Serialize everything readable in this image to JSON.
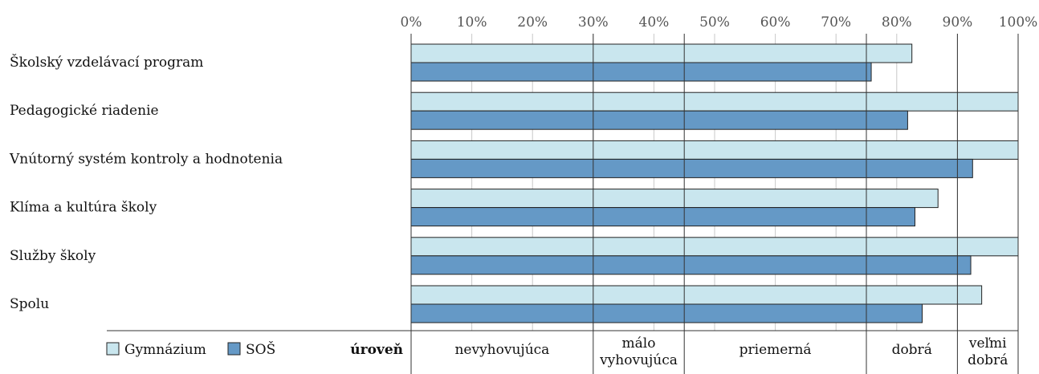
{
  "chart_data": {
    "type": "bar",
    "orientation": "horizontal",
    "categories": [
      "Školský vzdelávací program",
      "Pedagogické riadenie",
      "Vnútorný systém kontroly a hodnotenia",
      "Klíma a kultúra školy",
      "Služby školy",
      "Spolu"
    ],
    "series": [
      {
        "name": "Gymnázium",
        "color": "#c9e6ee",
        "values": [
          82.5,
          100,
          100,
          86.8,
          100,
          94
        ]
      },
      {
        "name": "SOŠ",
        "color": "#6599c6",
        "values": [
          75.8,
          81.8,
          92.5,
          83,
          92.2,
          84.2
        ]
      }
    ],
    "x_ticks": [
      "0%",
      "10%",
      "20%",
      "30%",
      "40%",
      "50%",
      "60%",
      "70%",
      "80%",
      "90%",
      "100%"
    ],
    "xlim": [
      0,
      100
    ],
    "grid": true,
    "legend_position": "bottom-left",
    "level_title": "úroveň",
    "levels": [
      {
        "from": 0,
        "to": 30,
        "lines": [
          "nevyhovujúca"
        ]
      },
      {
        "from": 30,
        "to": 45,
        "lines": [
          "málo",
          "vyhovujúca"
        ]
      },
      {
        "from": 45,
        "to": 75,
        "lines": [
          "priemerná"
        ]
      },
      {
        "from": 75,
        "to": 90,
        "lines": [
          "dobrá"
        ]
      },
      {
        "from": 90,
        "to": 100,
        "lines": [
          "veľmi",
          "dobrá"
        ]
      }
    ]
  }
}
